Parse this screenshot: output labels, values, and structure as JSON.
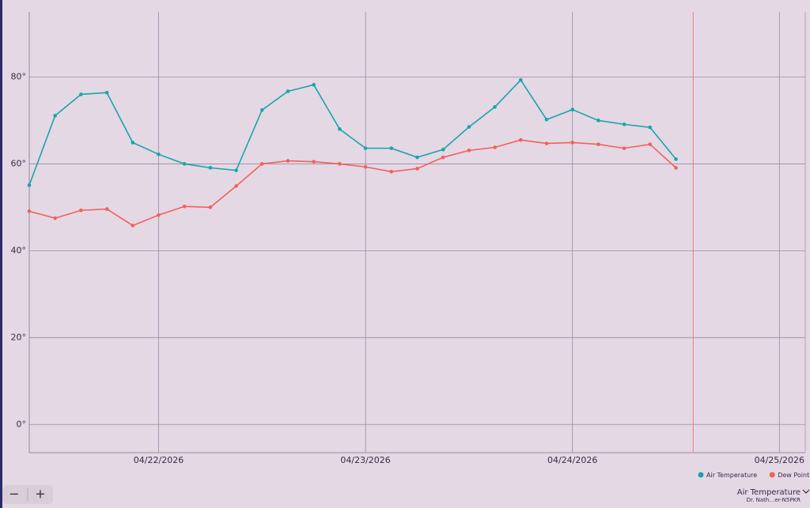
{
  "chart_data": {
    "type": "line",
    "x": [
      "2026-04-21T09:00",
      "2026-04-21T12:00",
      "2026-04-21T15:00",
      "2026-04-21T18:00",
      "2026-04-21T21:00",
      "2026-04-22T00:00",
      "2026-04-22T03:00",
      "2026-04-22T06:00",
      "2026-04-22T09:00",
      "2026-04-22T12:00",
      "2026-04-22T15:00",
      "2026-04-22T18:00",
      "2026-04-22T21:00",
      "2026-04-23T00:00",
      "2026-04-23T03:00",
      "2026-04-23T06:00",
      "2026-04-23T09:00",
      "2026-04-23T12:00",
      "2026-04-23T15:00",
      "2026-04-23T18:00",
      "2026-04-23T21:00",
      "2026-04-24T00:00",
      "2026-04-24T03:00",
      "2026-04-24T06:00",
      "2026-04-24T09:00",
      "2026-04-24T12:00"
    ],
    "series": [
      {
        "name": "Air Temperature",
        "color": "#17a5a8",
        "values": [
          55.1,
          71.1,
          76.0,
          76.4,
          64.9,
          62.2,
          60.0,
          59.1,
          58.5,
          72.4,
          76.7,
          78.2,
          68.0,
          63.6,
          63.6,
          61.5,
          63.3,
          68.5,
          73.1,
          79.3,
          70.2,
          72.5,
          70.0,
          69.1,
          68.4,
          61.1
        ]
      },
      {
        "name": "Dew Point",
        "color": "#f2605a",
        "values": [
          49.1,
          47.5,
          49.3,
          49.6,
          45.8,
          48.2,
          50.2,
          50.0,
          54.9,
          60.0,
          60.7,
          60.5,
          60.0,
          59.3,
          58.2,
          58.9,
          61.5,
          63.1,
          63.8,
          65.5,
          64.7,
          64.9,
          64.5,
          63.6,
          64.5,
          59.1
        ]
      }
    ],
    "xlim": [
      "2026-04-21T09:00",
      "2026-04-25T03:00"
    ],
    "xticks": [
      {
        "value": "2026-04-22T00:00",
        "label": "04/22/2026"
      },
      {
        "value": "2026-04-23T00:00",
        "label": "04/23/2026"
      },
      {
        "value": "2026-04-24T00:00",
        "label": "04/24/2026"
      },
      {
        "value": "2026-04-25T00:00",
        "label": "04/25/2026"
      }
    ],
    "ylim": [
      -6.5,
      95
    ],
    "yticks": [
      {
        "value": 0,
        "label": "0°"
      },
      {
        "value": 20,
        "label": "20°"
      },
      {
        "value": 40,
        "label": "40°"
      },
      {
        "value": 60,
        "label": "60°"
      },
      {
        "value": 80,
        "label": "80°"
      }
    ],
    "grid": true,
    "legend": "bottom-right",
    "now_marker": {
      "x": "2026-04-24T14:00",
      "color": "#f07a7a"
    }
  },
  "ui": {
    "zoom_out": "−",
    "zoom_in": "+",
    "selector": {
      "title": "Air Temperature",
      "subtitle": "Dr. Nath…er-N5PKR"
    }
  }
}
